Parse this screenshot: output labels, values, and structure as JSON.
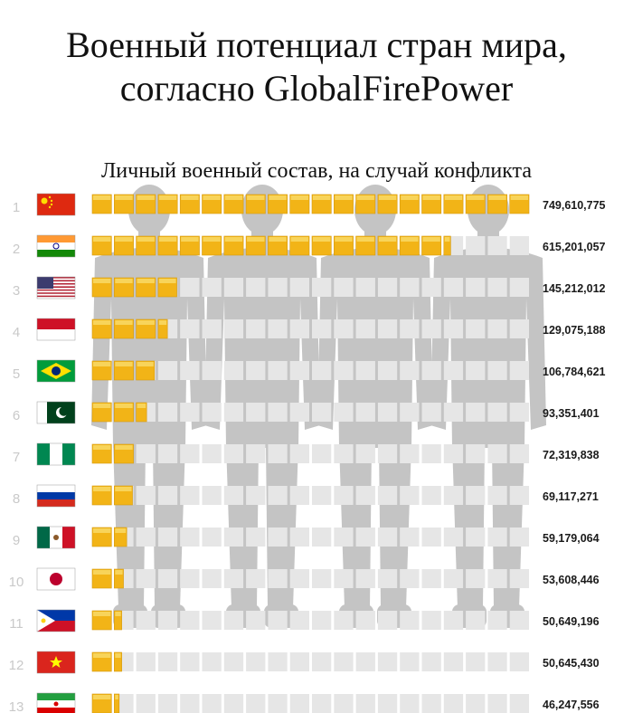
{
  "title_line1": "Военный потенциал стран мира,",
  "title_line2": "согласно GlobalFirePower",
  "subtitle": "Личный военный состав, на случай конфликта",
  "colors": {
    "bar_fill": "#f2b417",
    "bar_fill_light": "#f8d45a",
    "bar_edge": "#d49a10",
    "track": "#e6e6e6",
    "silhouette": "#c4c4c4",
    "rank_text": "#c9c9c9",
    "value_text": "#1a1a1a"
  },
  "chart_data": {
    "type": "bar",
    "orientation": "horizontal",
    "title": "Личный военный состав, на случай конфликта",
    "unit_segments": 20,
    "max_value": 749610775,
    "ranks": [
      "1",
      "2",
      "3",
      "4",
      "5",
      "6",
      "7",
      "8",
      "9",
      "10",
      "11",
      "12",
      "13"
    ],
    "flags": [
      "china",
      "india",
      "usa",
      "indonesia",
      "brazil",
      "pakistan",
      "nigeria",
      "russia",
      "mexico",
      "japan",
      "philippines",
      "vietnam",
      "iran"
    ],
    "value_labels": [
      "749,610,775",
      "615,201,057",
      "145,212,012",
      "129,075,188",
      "106,784,621",
      "93,351,401",
      "72,319,838",
      "69,117,271",
      "59,179,064",
      "53,608,446",
      "50,649,196",
      "50,645,430",
      "46,247,556"
    ],
    "values": [
      749610775,
      615201057,
      145212012,
      129075188,
      106784621,
      93351401,
      72319838,
      69117271,
      59179064,
      53608446,
      50649196,
      50645430,
      46247556
    ]
  }
}
